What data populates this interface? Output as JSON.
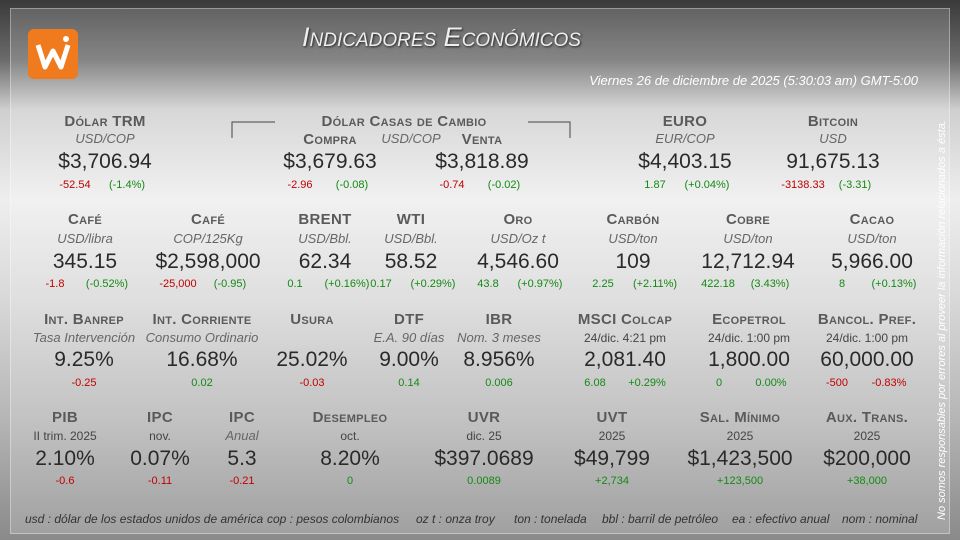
{
  "header": {
    "title": "Indicadores Económicos",
    "date": "Viernes 26 de diciembre de 2025 (5:30:03 am) GMT-5:00"
  },
  "rows": [
    [
      {
        "name": "Dólar TRM",
        "unit": "USD/COP",
        "value": "$3,706.94",
        "change": "-52.54",
        "pct": "(-1.4%)"
      },
      {
        "name": "Dólar Casas de Cambio",
        "unit": "USD/COP",
        "buy": {
          "label": "Compra",
          "value": "$3,679.63",
          "change": "-2.96",
          "pct": "(-0.08)"
        },
        "sell": {
          "label": "Venta",
          "value": "$3,818.89",
          "change": "-0.74",
          "pct": "(-0.02)"
        }
      },
      {
        "name": "EURO",
        "unit": "EUR/COP",
        "value": "$4,403.15",
        "change": "1.87",
        "pct": "(+0.04%)"
      },
      {
        "name": "Bitcoin",
        "unit": "USD",
        "value": "91,675.13",
        "change": "-3138.33",
        "pct": "(-3.31)"
      }
    ],
    [
      {
        "name": "Café",
        "unit": "USD/libra",
        "value": "345.15",
        "change": "-1.8",
        "pct": "(-0.52%)"
      },
      {
        "name": "Café",
        "unit": "COP/125Kg",
        "value": "$2,598,000",
        "change": "-25,000",
        "pct": "(-0.95)"
      },
      {
        "name": "BRENT",
        "unit": "USD/Bbl.",
        "value": "62.34",
        "change": "0.1",
        "pct": "(+0.16%)"
      },
      {
        "name": "WTI",
        "unit": "USD/Bbl.",
        "value": "58.52",
        "change": "0.17",
        "pct": "(+0.29%)"
      },
      {
        "name": "Oro",
        "unit": "USD/Oz t",
        "value": "4,546.60",
        "change": "43.8",
        "pct": "(+0.97%)"
      },
      {
        "name": "Carbón",
        "unit": "USD/ton",
        "value": "109",
        "change": "2.25",
        "pct": "(+2.11%)"
      },
      {
        "name": "Cobre",
        "unit": "USD/ton",
        "value": "12,712.94",
        "change": "422.18",
        "pct": "(3.43%)"
      },
      {
        "name": "Cacao",
        "unit": "USD/ton",
        "value": "5,966.00",
        "change": "8",
        "pct": "(+0.13%)"
      }
    ],
    [
      {
        "name": "Int. Banrep",
        "unit": "Tasa Intervención",
        "value": "9.25%",
        "change": "-0.25"
      },
      {
        "name": "Int. Corriente",
        "unit": "Consumo Ordinario",
        "value": "16.68%",
        "change": "0.02"
      },
      {
        "name": "Usura",
        "value": "25.02%",
        "change": "-0.03"
      },
      {
        "name": "DTF",
        "unit": "E.A. 90 días",
        "value": "9.00%",
        "change": "0.14"
      },
      {
        "name": "IBR",
        "unit": "Nom. 3 meses",
        "value": "8.956%",
        "change": "0.006"
      },
      {
        "name": "MSCI Colcap",
        "date": "24/dic. 4:21 pm",
        "value": "2,081.40",
        "change": "6.08",
        "pct": "+0.29%"
      },
      {
        "name": "Ecopetrol",
        "date": "24/dic. 1:00 pm",
        "value": "1,800.00",
        "change": "0",
        "pct": "0.00%"
      },
      {
        "name": "Bancol. Pref.",
        "date": "24/dic. 1:00 pm",
        "value": "60,000.00",
        "change": "-500",
        "pct": "-0.83%"
      }
    ],
    [
      {
        "name": "PIB",
        "date": "II trim. 2025",
        "value": "2.10%",
        "change": "-0.6"
      },
      {
        "name": "IPC",
        "date": "nov.",
        "value": "0.07%",
        "change": "-0.11"
      },
      {
        "name": "IPC",
        "unit": "Anual",
        "value": "5.3",
        "change": "-0.21"
      },
      {
        "name": "Desempleo",
        "date": "oct.",
        "value": "8.20%",
        "change": "0"
      },
      {
        "name": "UVR",
        "date": "dic. 25",
        "value": "$397.0689",
        "change": "0.0089"
      },
      {
        "name": "UVT",
        "date": "2025",
        "value": "$49,799",
        "change": "+2,734"
      },
      {
        "name": "Sal. Mínimo",
        "date": "2025",
        "value": "$1,423,500",
        "change": "+123,500"
      },
      {
        "name": "Aux. Trans.",
        "date": "2025",
        "value": "$200,000",
        "change": "+38,000"
      }
    ]
  ],
  "glossary": [
    "usd : dólar de los estados unidos de américa",
    "cop : pesos colombianos",
    "oz t : onza troy",
    "ton : tonelada",
    "bbl : barril de petróleo",
    "ea : efectivo anual",
    "nom : nominal"
  ],
  "disclaimer": "No somos responsables por errores al proveer la información relacionados a ésta."
}
